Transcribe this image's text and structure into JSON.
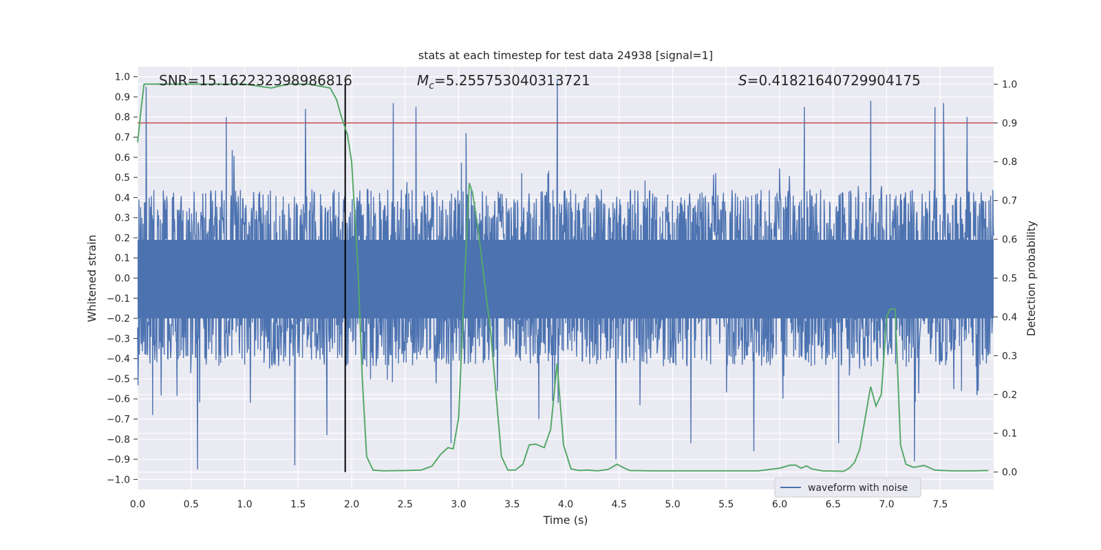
{
  "chart_data": {
    "type": "line",
    "title": "stats at each timestep for test data 24938 [signal=1]",
    "xlabel": "Time (s)",
    "ylabel": "Whitened strain",
    "y2label": "Detection probability",
    "xlim": [
      0.0,
      8.0
    ],
    "ylim": [
      -1.05,
      1.05
    ],
    "y2lim": [
      -0.045,
      1.045
    ],
    "x_ticks": [
      "0.0",
      "0.5",
      "1.0",
      "1.5",
      "2.0",
      "2.5",
      "3.0",
      "3.5",
      "4.0",
      "4.5",
      "5.0",
      "5.5",
      "6.0",
      "6.5",
      "7.0",
      "7.5"
    ],
    "y_ticks": [
      "1.0",
      "0.9",
      "0.8",
      "0.7",
      "0.6",
      "0.5",
      "0.4",
      "0.3",
      "0.2",
      "0.1",
      "0.0",
      "−0.1",
      "−0.2",
      "−0.3",
      "−0.4",
      "−0.5",
      "−0.6",
      "−0.7",
      "−0.8",
      "−0.9",
      "−1.0"
    ],
    "y2_ticks": [
      "1.0",
      "0.9",
      "0.8",
      "0.7",
      "0.6",
      "0.5",
      "0.4",
      "0.3",
      "0.2",
      "0.1",
      "0.0"
    ],
    "annotations": {
      "snr": "SNR=15.162232398986816",
      "mc_symbol": "M",
      "mc_sub": "c",
      "mc_value": "=5.255753040313721",
      "s_symbol": "S",
      "s_value": "=0.41821640729904175"
    },
    "threshold": {
      "y2": 0.9,
      "color": "#c44e52"
    },
    "merger_time": 1.94,
    "series": [
      {
        "name": "waveform with noise",
        "axis": "left",
        "color": "#4c72b0",
        "t_range": [
          0.0,
          8.0
        ],
        "points": 2000,
        "seed": 24938,
        "typical_positive_peak": 0.4,
        "typical_negative_peak": -0.45,
        "peaks": [
          [
            0.08,
            0.95
          ],
          [
            0.56,
            -0.95
          ],
          [
            0.83,
            0.8
          ],
          [
            1.47,
            -0.93
          ],
          [
            1.57,
            0.84
          ],
          [
            1.77,
            -0.78
          ],
          [
            2.39,
            0.87
          ],
          [
            2.6,
            0.85
          ],
          [
            3.07,
            0.72
          ],
          [
            3.92,
            0.99
          ],
          [
            4.47,
            -0.9
          ],
          [
            5.17,
            -0.82
          ],
          [
            5.76,
            -0.86
          ],
          [
            6.23,
            0.85
          ],
          [
            6.55,
            -0.82
          ],
          [
            6.85,
            0.88
          ],
          [
            7.45,
            0.85
          ],
          [
            7.53,
            0.87
          ],
          [
            7.26,
            -0.91
          ],
          [
            7.75,
            0.8
          ],
          [
            3.75,
            -0.7
          ],
          [
            2.93,
            -0.82
          ],
          [
            0.14,
            -0.68
          ]
        ]
      },
      {
        "name": "detection probability",
        "axis": "right",
        "color": "#55a868",
        "t": [
          0.0,
          0.03,
          0.06,
          0.1,
          0.3,
          0.6,
          1.0,
          1.25,
          1.4,
          1.6,
          1.8,
          1.86,
          1.9,
          1.96,
          2.0,
          2.06,
          2.1,
          2.14,
          2.2,
          2.3,
          2.5,
          2.65,
          2.75,
          2.83,
          2.9,
          2.95,
          3.0,
          3.06,
          3.1,
          3.13,
          3.18,
          3.3,
          3.4,
          3.46,
          3.53,
          3.6,
          3.66,
          3.72,
          3.8,
          3.86,
          3.92,
          3.98,
          4.05,
          4.13,
          4.2,
          4.3,
          4.4,
          4.48,
          4.55,
          4.6,
          4.8,
          5.0,
          5.4,
          5.8,
          6.0,
          6.1,
          6.15,
          6.2,
          6.25,
          6.3,
          6.4,
          6.6,
          6.65,
          6.7,
          6.75,
          6.8,
          6.85,
          6.9,
          6.95,
          7.0,
          7.03,
          7.08,
          7.13,
          7.18,
          7.25,
          7.35,
          7.45,
          7.6,
          7.8,
          7.95
        ],
        "p": [
          0.85,
          0.93,
          1.0,
          1.0,
          1.0,
          1.0,
          1.0,
          0.99,
          1.0,
          1.0,
          0.99,
          0.96,
          0.92,
          0.87,
          0.8,
          0.52,
          0.24,
          0.04,
          0.005,
          0.003,
          0.004,
          0.005,
          0.015,
          0.045,
          0.063,
          0.06,
          0.14,
          0.52,
          0.745,
          0.72,
          0.63,
          0.36,
          0.04,
          0.005,
          0.005,
          0.02,
          0.07,
          0.072,
          0.063,
          0.11,
          0.28,
          0.07,
          0.008,
          0.004,
          0.005,
          0.003,
          0.007,
          0.02,
          0.01,
          0.004,
          0.003,
          0.003,
          0.003,
          0.003,
          0.01,
          0.018,
          0.018,
          0.01,
          0.016,
          0.008,
          0.003,
          0.002,
          0.01,
          0.025,
          0.06,
          0.14,
          0.22,
          0.17,
          0.2,
          0.4,
          0.42,
          0.42,
          0.07,
          0.02,
          0.012,
          0.017,
          0.005,
          0.003,
          0.003,
          0.004
        ]
      }
    ],
    "legend": {
      "position": "lower-right",
      "label": "waveform with noise"
    }
  }
}
